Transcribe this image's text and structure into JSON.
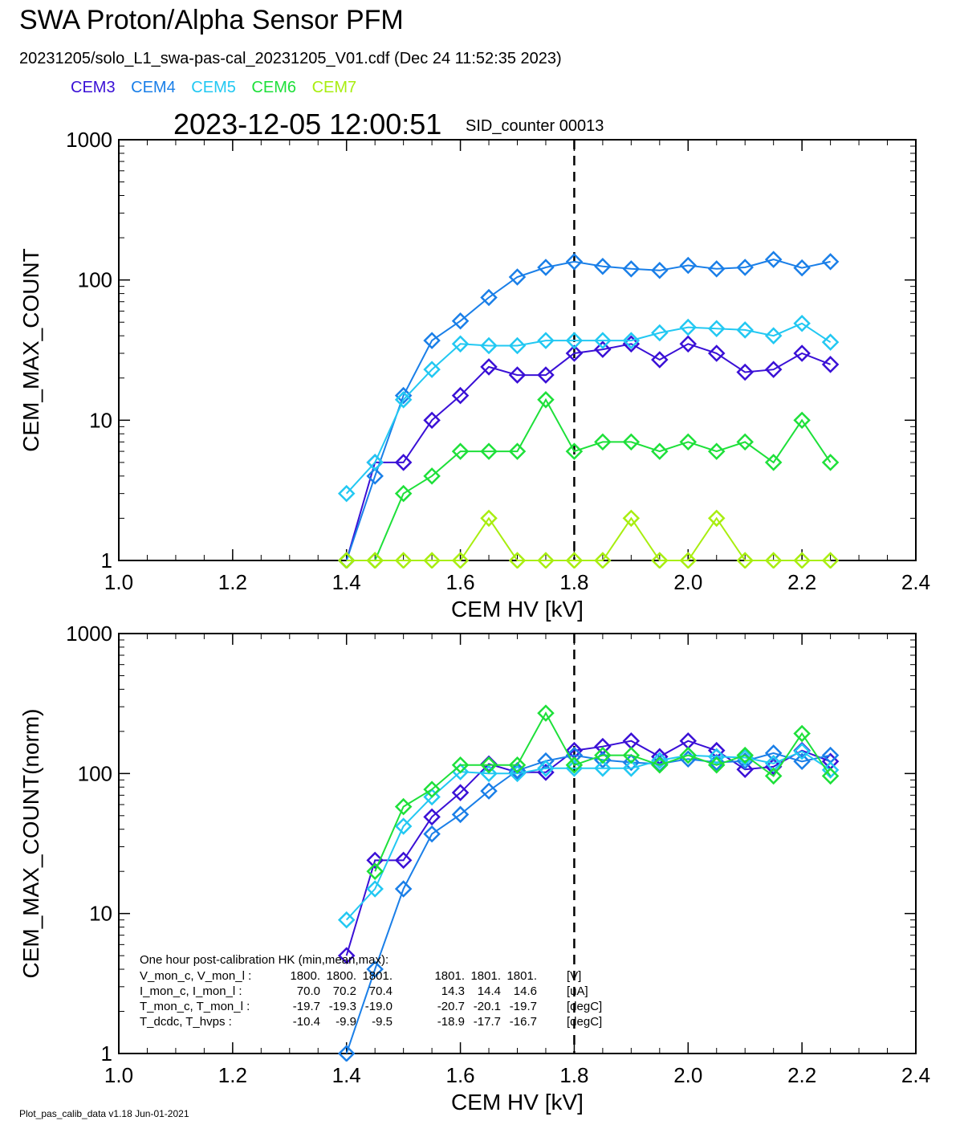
{
  "header": {
    "title": "SWA Proton/Alpha Sensor PFM",
    "subtitle": "20231205/solo_L1_swa-pas-cal_20231205_V01.cdf  (Dec 24 11:52:35 2023)",
    "timestamp": "2023-12-05 12:00:51",
    "sid_counter": "SID_counter 00013"
  },
  "legend": [
    {
      "name": "CEM3",
      "color": "#3a10d6"
    },
    {
      "name": "CEM4",
      "color": "#1a7fe8"
    },
    {
      "name": "CEM5",
      "color": "#22c8f2"
    },
    {
      "name": "CEM6",
      "color": "#1ee03a"
    },
    {
      "name": "CEM7",
      "color": "#a8ee10"
    }
  ],
  "footer": "Plot_pas_calib_data v1.18 Jun-01-2021",
  "chart_data": [
    {
      "type": "line",
      "xlabel": "CEM HV [kV]",
      "ylabel": "CEM_MAX_COUNT",
      "xlim": [
        1.0,
        2.4
      ],
      "ylim": [
        1,
        1000
      ],
      "ylog": true,
      "xticks": [
        "1.0",
        "1.2",
        "1.4",
        "1.6",
        "1.8",
        "2.0",
        "2.2",
        "2.4"
      ],
      "yticks": [
        "1",
        "10",
        "100",
        "1000"
      ],
      "vline": 1.8,
      "x": [
        1.4,
        1.45,
        1.5,
        1.55,
        1.6,
        1.65,
        1.7,
        1.75,
        1.8,
        1.85,
        1.9,
        1.95,
        2.0,
        2.05,
        2.1,
        2.15,
        2.2,
        2.25
      ],
      "series": [
        {
          "name": "CEM3",
          "values": [
            1,
            5,
            5,
            10,
            15,
            24,
            21,
            21,
            30,
            32,
            35,
            27,
            35,
            30,
            22,
            23,
            30,
            25
          ]
        },
        {
          "name": "CEM4",
          "values": [
            1,
            4,
            15,
            37,
            51,
            75,
            105,
            123,
            135,
            125,
            120,
            117,
            127,
            120,
            123,
            140,
            122,
            135
          ]
        },
        {
          "name": "CEM5",
          "values": [
            3,
            5,
            14,
            23,
            35,
            34,
            34,
            37,
            37,
            37,
            37,
            42,
            46,
            45,
            44,
            40,
            49,
            36
          ]
        },
        {
          "name": "CEM6",
          "values": [
            1,
            1,
            3,
            4,
            6,
            6,
            6,
            14,
            6,
            7,
            7,
            6,
            7,
            6,
            7,
            5,
            10,
            5
          ]
        },
        {
          "name": "CEM7",
          "values": [
            1,
            1,
            1,
            1,
            1,
            2,
            1,
            1,
            1,
            1,
            2,
            1,
            1,
            2,
            1,
            1,
            1,
            1
          ]
        }
      ]
    },
    {
      "type": "line",
      "xlabel": "CEM HV [kV]",
      "ylabel": "CEM_MAX_COUNT(norm)",
      "xlim": [
        1.0,
        2.4
      ],
      "ylim": [
        1,
        1000
      ],
      "ylog": true,
      "xticks": [
        "1.0",
        "1.2",
        "1.4",
        "1.6",
        "1.8",
        "2.0",
        "2.2",
        "2.4"
      ],
      "yticks": [
        "1",
        "10",
        "100",
        "1000"
      ],
      "vline": 1.8,
      "x": [
        1.4,
        1.45,
        1.5,
        1.55,
        1.6,
        1.65,
        1.7,
        1.75,
        1.8,
        1.85,
        1.9,
        1.95,
        2.0,
        2.05,
        2.1,
        2.15,
        2.2,
        2.25
      ],
      "series": [
        {
          "name": "CEM3",
          "values": [
            5,
            24,
            24,
            49,
            73,
            117,
            102,
            102,
            146,
            156,
            171,
            132,
            171,
            146,
            107,
            112,
            146,
            122
          ]
        },
        {
          "name": "CEM4",
          "values": [
            1,
            4,
            15,
            37,
            51,
            75,
            105,
            123,
            135,
            125,
            120,
            117,
            127,
            120,
            123,
            140,
            122,
            135
          ]
        },
        {
          "name": "CEM5",
          "values": [
            9,
            15,
            42,
            68,
            103,
            100,
            100,
            109,
            109,
            109,
            109,
            124,
            135,
            132,
            130,
            118,
            144,
            106
          ]
        },
        {
          "name": "CEM6",
          "values": [
            null,
            20,
            58,
            77,
            115,
            115,
            115,
            270,
            115,
            135,
            135,
            115,
            135,
            115,
            135,
            96,
            193,
            96
          ]
        }
      ],
      "annotation": {
        "heading": "One hour post-calibration HK (min,mean,max):",
        "rows": [
          {
            "label": "V_mon_c, V_mon_l :",
            "c": [
              "1800.",
              "1800.",
              "1801."
            ],
            "l": [
              "1801.",
              "1801.",
              "1801."
            ],
            "unit": "[V]"
          },
          {
            "label": "I_mon_c,  I_mon_l :",
            "c": [
              "70.0",
              "70.2",
              "70.4"
            ],
            "l": [
              "14.3",
              "14.4",
              "14.6"
            ],
            "unit": "[uA]"
          },
          {
            "label": "T_mon_c, T_mon_l :",
            "c": [
              "-19.7",
              "-19.3",
              "-19.0"
            ],
            "l": [
              "-20.7",
              "-20.1",
              "-19.7"
            ],
            "unit": "[degC]"
          },
          {
            "label": "T_dcdc,   T_hvps :",
            "c": [
              "-10.4",
              "-9.9",
              "-9.5"
            ],
            "l": [
              "-18.9",
              "-17.7",
              "-16.7"
            ],
            "unit": "[degC]"
          }
        ]
      }
    }
  ]
}
